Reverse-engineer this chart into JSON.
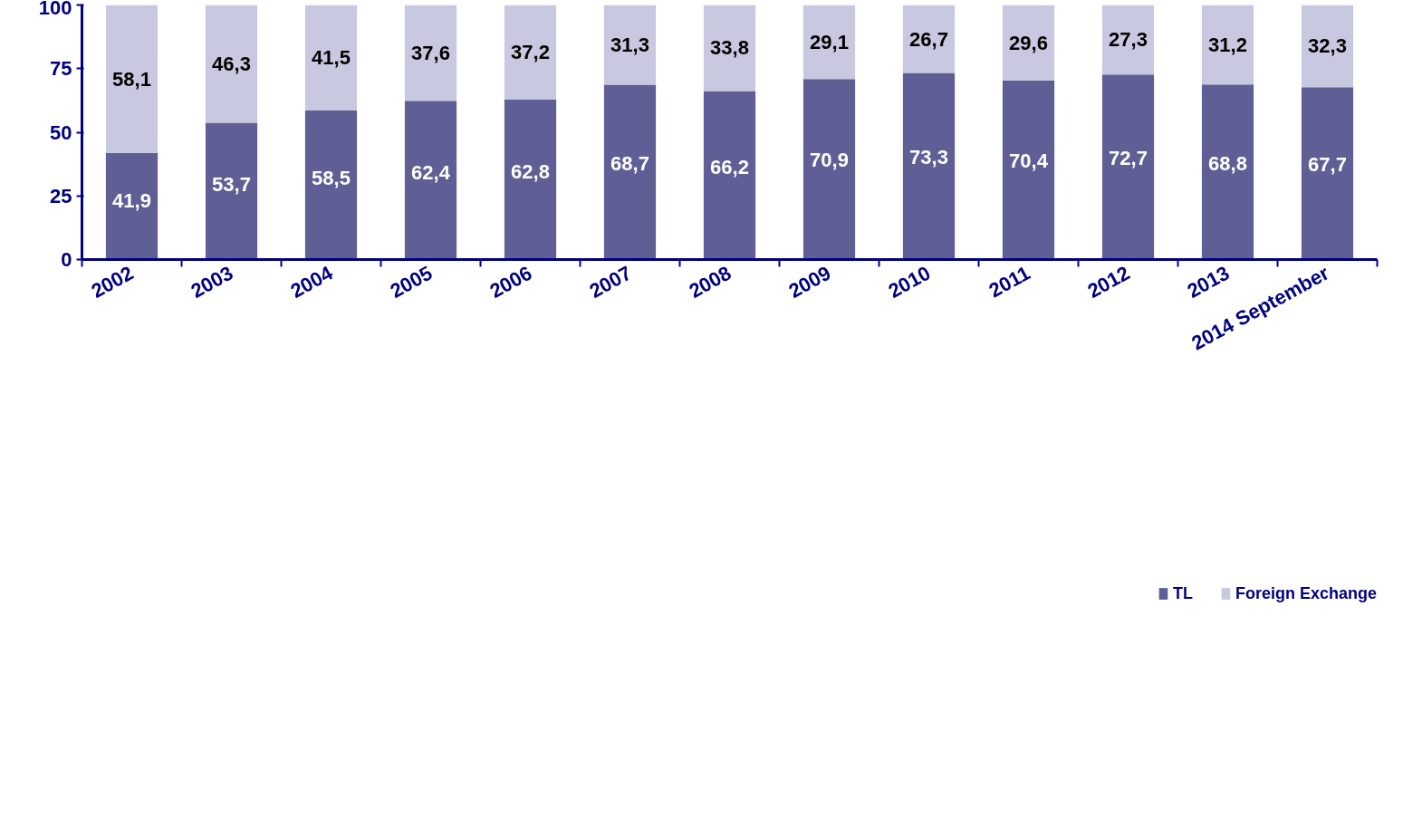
{
  "chart_data": {
    "type": "bar",
    "stacked": true,
    "categories": [
      "2002",
      "2003",
      "2004",
      "2005",
      "2006",
      "2007",
      "2008",
      "2009",
      "2010",
      "2011",
      "2012",
      "2013",
      "2014 September"
    ],
    "series": [
      {
        "name": "TL",
        "color": "#5f5f96",
        "values": [
          41.9,
          53.7,
          58.5,
          62.4,
          62.8,
          68.7,
          66.2,
          70.9,
          73.3,
          70.4,
          72.7,
          68.8,
          67.7
        ],
        "value_labels": [
          "41,9",
          "53,7",
          "58,5",
          "62,4",
          "62,8",
          "68,7",
          "66,2",
          "70,9",
          "73,3",
          "70,4",
          "72,7",
          "68,8",
          "67,7"
        ]
      },
      {
        "name": "Foreign Exchange",
        "color": "#c8c8e0",
        "values": [
          58.1,
          46.3,
          41.5,
          37.6,
          37.2,
          31.3,
          33.8,
          29.1,
          26.7,
          29.6,
          27.3,
          31.2,
          32.3
        ],
        "value_labels": [
          "58,1",
          "46,3",
          "41,5",
          "37,6",
          "37,2",
          "31,3",
          "33,8",
          "29,1",
          "26,7",
          "29,6",
          "27,3",
          "31,2",
          "32,3"
        ]
      }
    ],
    "ylim": [
      0,
      100
    ],
    "yticks": [
      0,
      25,
      50,
      75,
      100
    ],
    "grid": false,
    "legend": "bottom"
  }
}
